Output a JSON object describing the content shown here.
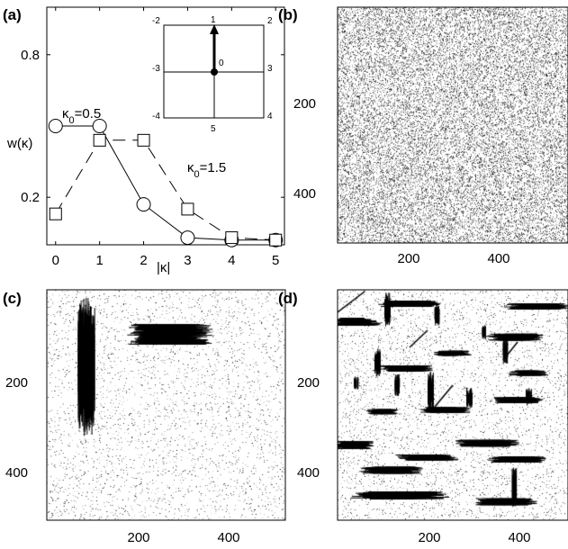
{
  "chart_data": [
    {
      "type": "line",
      "panel_label": "(a)",
      "ylabel": "w(κ)",
      "xlabel": "|κ|",
      "x": [
        0,
        1,
        2,
        3,
        4,
        5
      ],
      "xticks": [
        "0",
        "1",
        "2",
        "3",
        "4",
        "5"
      ],
      "yticks": [
        "0.2",
        "0.8"
      ],
      "xlim": [
        -0.2,
        5.2
      ],
      "ylim": [
        0,
        1.0
      ],
      "series": [
        {
          "name": "κ0=0.5",
          "marker": "circle",
          "line": "solid",
          "values": [
            0.5,
            0.5,
            0.17,
            0.03,
            0.02,
            0.02
          ]
        },
        {
          "name": "κ0=1.5",
          "marker": "square",
          "line": "dashed",
          "values": [
            0.13,
            0.44,
            0.44,
            0.15,
            0.03,
            0.02
          ]
        }
      ],
      "annotations": [
        "κ0=0.5",
        "κ0=1.5"
      ],
      "inset": {
        "type": "diagram",
        "numbers": [
          "-2",
          "1",
          "2",
          "-3",
          "0",
          "3",
          "-4",
          "5",
          "4"
        ],
        "arrow": "from 0 to 1"
      }
    },
    {
      "type": "heatmap",
      "panel_label": "(b)",
      "description": "uniform random texture",
      "xticks": [
        "200",
        "400"
      ],
      "yticks": [
        "200",
        "400"
      ],
      "xlim": [
        0,
        512
      ],
      "ylim": [
        0,
        512
      ]
    },
    {
      "type": "heatmap",
      "panel_label": "(c)",
      "description": "two dense streaky blobs on sparse background",
      "xticks": [
        "200",
        "400"
      ],
      "yticks": [
        "200",
        "400"
      ],
      "xlim": [
        0,
        512
      ],
      "ylim": [
        0,
        512
      ]
    },
    {
      "type": "heatmap",
      "panel_label": "(d)",
      "description": "many horizontal and vertical streaks on sparse background",
      "xticks": [
        "200",
        "400"
      ],
      "yticks": [
        "200",
        "400"
      ],
      "xlim": [
        0,
        512
      ],
      "ylim": [
        0,
        512
      ]
    }
  ]
}
